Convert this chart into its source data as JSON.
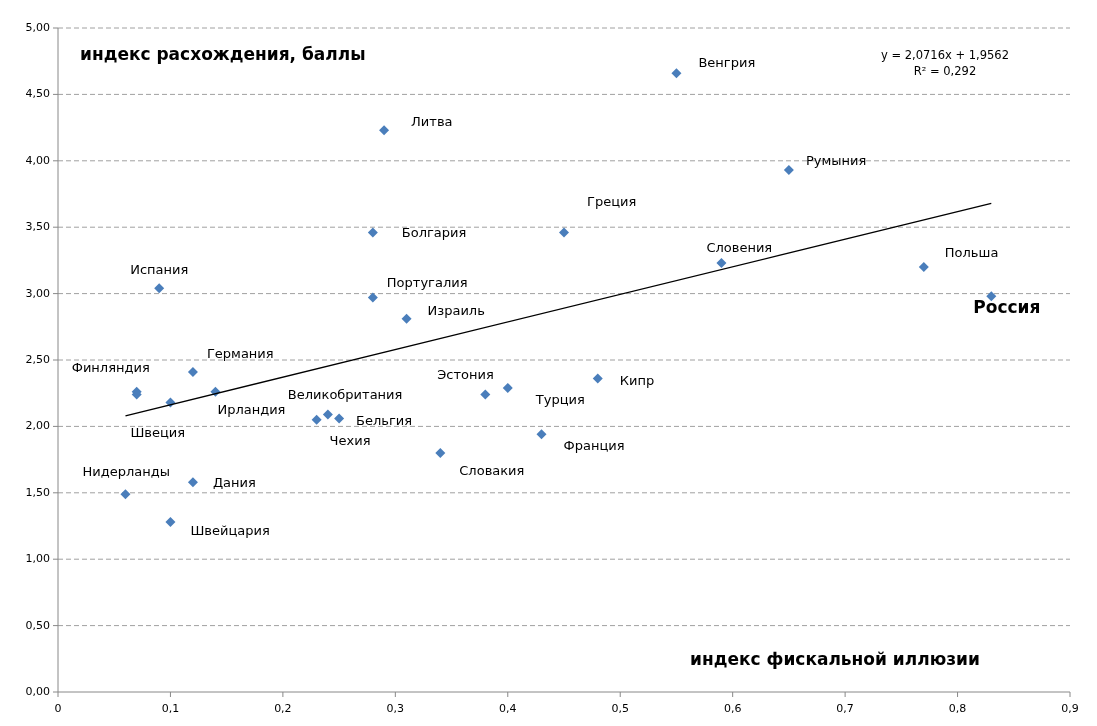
{
  "chart_data": {
    "type": "scatter",
    "xlabel": "индекс фискальной иллюзии",
    "ylabel": "индекс расхождения, баллы",
    "annotations": [
      "y = 2,0716x + 1,9562",
      "R² = 0,292"
    ],
    "xlim": [
      0,
      0.9
    ],
    "ylim": [
      0,
      5
    ],
    "xticks": [
      {
        "value": 0,
        "label": "0"
      },
      {
        "value": 0.1,
        "label": "0,1"
      },
      {
        "value": 0.2,
        "label": "0,2"
      },
      {
        "value": 0.3,
        "label": "0,3"
      },
      {
        "value": 0.4,
        "label": "0,4"
      },
      {
        "value": 0.5,
        "label": "0,5"
      },
      {
        "value": 0.6,
        "label": "0,6"
      },
      {
        "value": 0.7,
        "label": "0,7"
      },
      {
        "value": 0.8,
        "label": "0,8"
      },
      {
        "value": 0.9,
        "label": "0,9"
      }
    ],
    "yticks": [
      {
        "value": 0,
        "label": "0,00"
      },
      {
        "value": 0.5,
        "label": "0,50"
      },
      {
        "value": 1,
        "label": "1,00"
      },
      {
        "value": 1.5,
        "label": "1,50"
      },
      {
        "value": 2,
        "label": "2,00"
      },
      {
        "value": 2.5,
        "label": "2,50"
      },
      {
        "value": 3,
        "label": "3,00"
      },
      {
        "value": 3.5,
        "label": "3,50"
      },
      {
        "value": 4,
        "label": "4,00"
      },
      {
        "value": 4.5,
        "label": "4,50"
      },
      {
        "value": 5,
        "label": "5,00"
      }
    ],
    "grid": "y",
    "marker": "diamond",
    "series": [
      {
        "color": "#4a7ebb",
        "x": [
          0.55,
          0.29,
          0.28,
          0.09,
          0.28,
          0.31,
          0.65,
          0.45,
          0.59,
          0.77,
          0.83,
          0.07,
          0.07,
          0.1,
          0.12,
          0.14,
          0.23,
          0.24,
          0.25,
          0.38,
          0.4,
          0.48,
          0.43,
          0.34,
          0.06,
          0.12,
          0.1
        ],
        "values": [
          4.66,
          4.23,
          3.46,
          3.04,
          2.97,
          2.81,
          3.93,
          3.46,
          3.23,
          3.2,
          2.98,
          2.26,
          2.24,
          2.18,
          2.41,
          2.26,
          2.05,
          2.09,
          2.06,
          2.24,
          2.29,
          2.36,
          1.94,
          1.8,
          1.49,
          1.58,
          1.28
        ],
        "value_labels": [
          "Венгрия",
          "Литва",
          "Болгария",
          "Испания",
          "Португалия",
          "Израиль",
          "Румыния",
          "Греция",
          "Словения",
          "Польша",
          "Россия",
          "Финляндия",
          null,
          "Швеция",
          "Германия",
          "Ирландия",
          "Чехия",
          "Великобритания",
          "Бельгия",
          "Эстония",
          "Турция",
          "Кипр",
          "Франция",
          "Словакия",
          "Нидерланды",
          "Дания",
          "Швейцария"
        ]
      },
      {
        "type": "line",
        "color": "#000000",
        "x": [
          0.06,
          0.83
        ],
        "values": [
          2.08,
          3.68
        ],
        "marker": "none",
        "line_style": "solid"
      }
    ]
  }
}
